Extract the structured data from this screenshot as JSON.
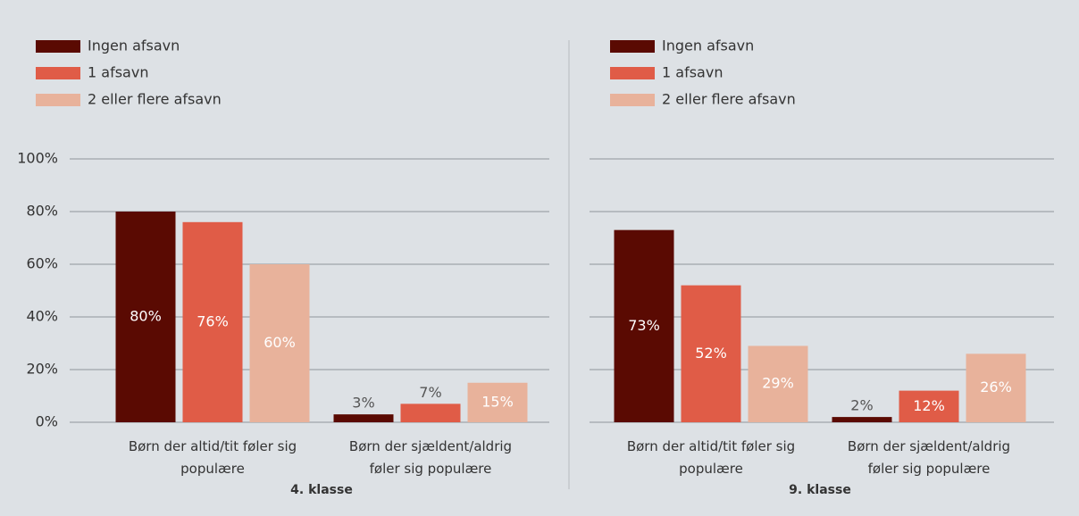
{
  "chart_data": [
    {
      "type": "bar",
      "xlabel": "4. klasse",
      "categories": [
        "Børn der altid/tit føler sig populære",
        "Børn der sjældent/aldrig føler sig populære"
      ],
      "series": [
        {
          "name": "Ingen afsavn",
          "color": "#5a0a02",
          "values": [
            80,
            3
          ],
          "value_labels": [
            "80%",
            "3%"
          ]
        },
        {
          "name": "1 afsavn",
          "color": "#e05c47",
          "values": [
            76,
            7
          ],
          "value_labels": [
            "76%",
            "7%"
          ]
        },
        {
          "name": "2 eller flere afsavn",
          "color": "#e8b29b",
          "values": [
            60,
            15
          ],
          "value_labels": [
            "60%",
            "15%"
          ]
        }
      ],
      "ylim": [
        0,
        100
      ],
      "yticks": [
        {
          "value": 0,
          "label": "0%"
        },
        {
          "value": 20,
          "label": "20%"
        },
        {
          "value": 40,
          "label": "40%"
        },
        {
          "value": 60,
          "label": "60%"
        },
        {
          "value": 80,
          "label": "80%"
        },
        {
          "value": 100,
          "label": "100%"
        }
      ],
      "ytick_labels": true,
      "grid": true,
      "legend": "top-left"
    },
    {
      "type": "bar",
      "xlabel": "9. klasse",
      "categories": [
        "Børn der altid/tit føler sig populære",
        "Børn der sjældent/aldrig føler sig populære"
      ],
      "series": [
        {
          "name": "Ingen afsavn",
          "color": "#5a0a02",
          "values": [
            73,
            2
          ],
          "value_labels": [
            "73%",
            "2%"
          ]
        },
        {
          "name": "1 afsavn",
          "color": "#e05c47",
          "values": [
            52,
            12
          ],
          "value_labels": [
            "52%",
            "12%"
          ]
        },
        {
          "name": "2 eller flere afsavn",
          "color": "#e8b29b",
          "values": [
            29,
            26
          ],
          "value_labels": [
            "29%",
            "26%"
          ]
        }
      ],
      "ylim": [
        0,
        100
      ],
      "yticks": [
        0,
        20,
        40,
        60,
        80,
        100
      ],
      "ytick_labels": false,
      "grid": true,
      "legend": "top-left"
    }
  ]
}
